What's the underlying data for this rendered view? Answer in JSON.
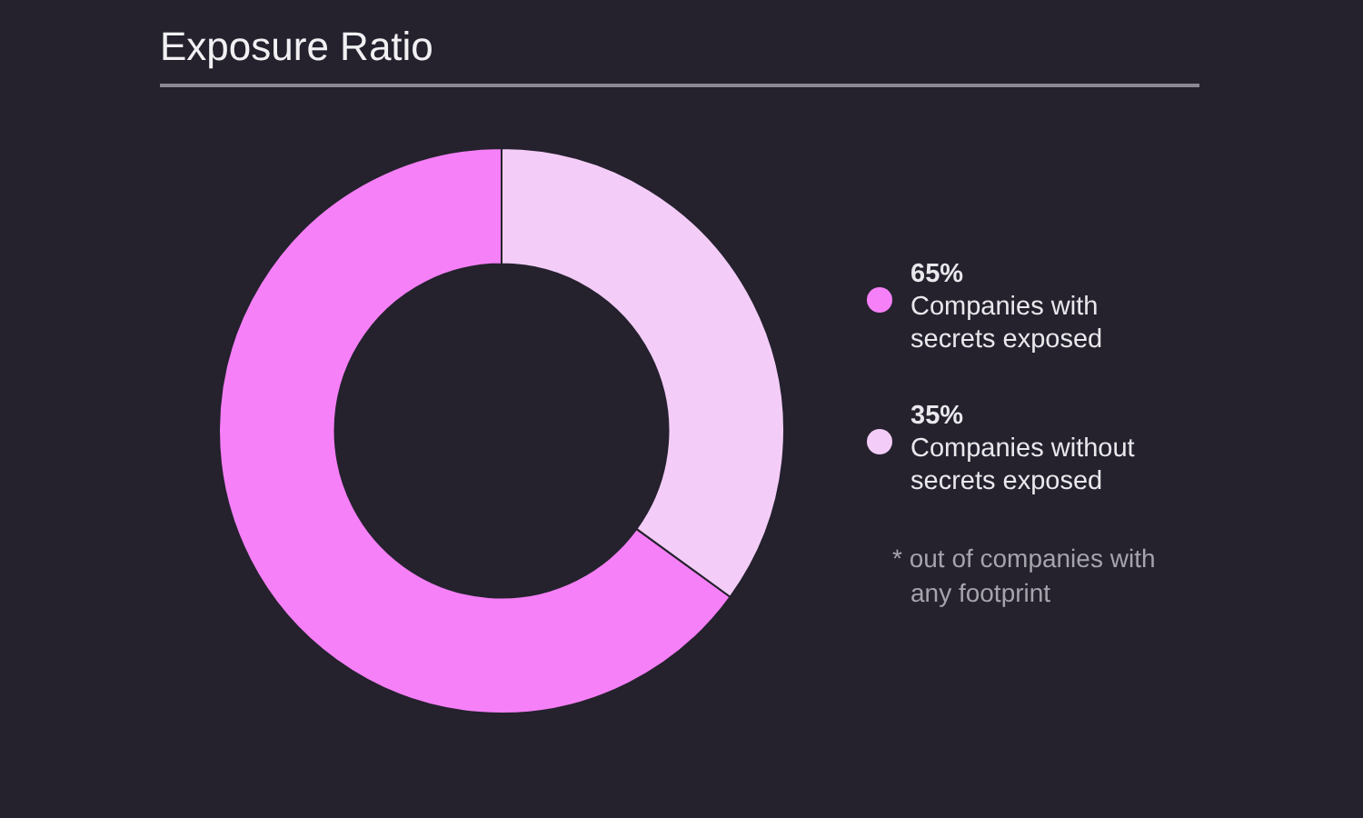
{
  "chart_data": {
    "type": "donut",
    "title": "Exposure Ratio",
    "categories": [
      "Companies with secrets exposed",
      "Companies without secrets exposed"
    ],
    "values": [
      65,
      35
    ],
    "colors": [
      "#f680f7",
      "#f3cdf8"
    ],
    "value_labels": [
      "65%",
      "35%"
    ],
    "legend": "right",
    "annotations": [
      "* out of companies with any footprint"
    ]
  }
}
